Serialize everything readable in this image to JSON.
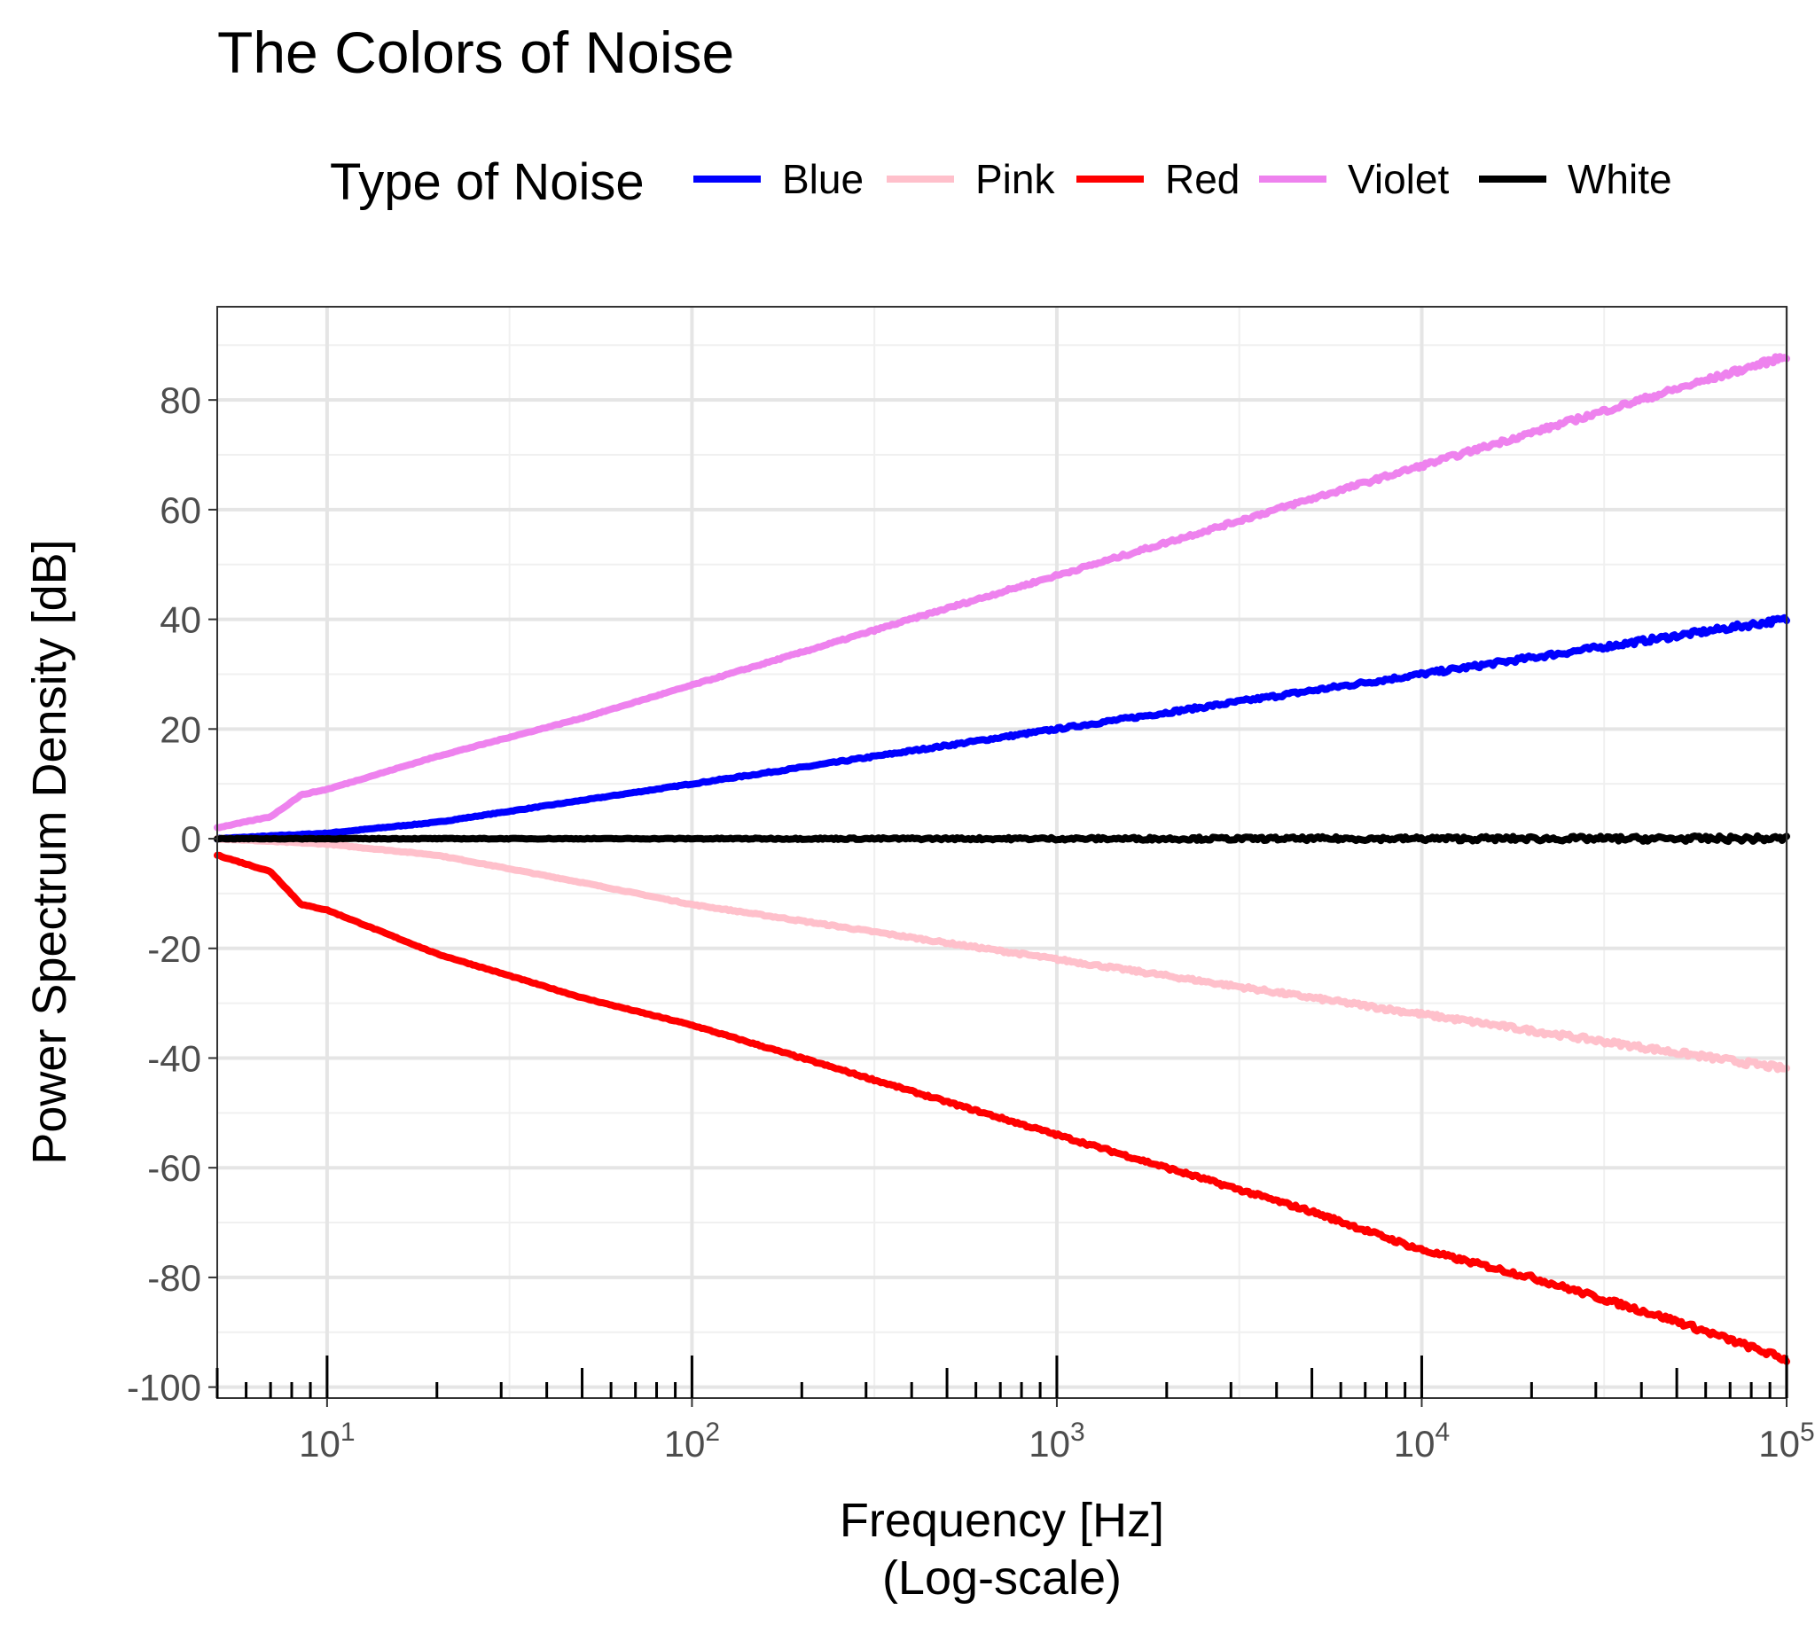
{
  "chart_data": {
    "type": "line",
    "title": "The Colors of Noise",
    "xlabel": "Frequency [Hz]",
    "xlabel_sub": "(Log-scale)",
    "ylabel": "Power Spectrum Density [dB]",
    "x_scale": "log10",
    "xlim": [
      5,
      100000
    ],
    "ylim": [
      -102,
      97
    ],
    "x_ticks": [
      10,
      100,
      1000,
      10000,
      100000
    ],
    "x_tick_labels": [
      {
        "base": "10",
        "exp": "1"
      },
      {
        "base": "10",
        "exp": "2"
      },
      {
        "base": "10",
        "exp": "3"
      },
      {
        "base": "10",
        "exp": "4"
      },
      {
        "base": "10",
        "exp": "5"
      }
    ],
    "y_ticks": [
      80,
      60,
      40,
      20,
      0,
      -20,
      -40,
      -60,
      -80,
      -100
    ],
    "y_tick_labels": [
      "80",
      "60",
      "40",
      "20",
      "0",
      "-20",
      "-40",
      "-60",
      "-80",
      "-100"
    ],
    "grid": true,
    "legend": {
      "title": "Type of Noise",
      "position": "top"
    },
    "series": [
      {
        "name": "Blue",
        "color": "#0000ff",
        "slope_db_per_decade": 10,
        "x": [
          5,
          7,
          10,
          20,
          50,
          100,
          200,
          500,
          1000,
          2000,
          5000,
          10000,
          20000,
          50000,
          100000
        ],
        "y": [
          0,
          0.5,
          1,
          3,
          7,
          10,
          13,
          17,
          20,
          23,
          27,
          30,
          33,
          37,
          40
        ]
      },
      {
        "name": "Pink",
        "color": "#ffc0cb",
        "slope_db_per_decade": -10,
        "x": [
          5,
          7,
          10,
          20,
          50,
          100,
          200,
          500,
          1000,
          2000,
          5000,
          10000,
          20000,
          50000,
          100000
        ],
        "y": [
          0,
          -0.5,
          -1,
          -3,
          -8,
          -12,
          -15,
          -19,
          -22,
          -25,
          -29,
          -32,
          -35,
          -39,
          -42
        ]
      },
      {
        "name": "Red",
        "color": "#ff0000",
        "slope_db_per_decade": -20,
        "x": [
          5,
          7,
          8.5,
          10,
          20,
          50,
          100,
          200,
          500,
          1000,
          2000,
          5000,
          10000,
          20000,
          50000,
          100000
        ],
        "y": [
          -3,
          -6,
          -12,
          -13,
          -21,
          -29,
          -34,
          -40,
          -48,
          -54,
          -60,
          -68,
          -75,
          -80,
          -88,
          -95
        ]
      },
      {
        "name": "Violet",
        "color": "#ee82ee",
        "slope_db_per_decade": 20,
        "x": [
          5,
          7,
          8.5,
          10,
          20,
          50,
          100,
          200,
          500,
          1000,
          2000,
          5000,
          10000,
          20000,
          50000,
          100000
        ],
        "y": [
          2,
          4,
          8,
          9,
          15,
          22,
          28,
          34,
          42,
          48,
          54,
          62,
          68,
          74,
          82,
          88
        ]
      },
      {
        "name": "White",
        "color": "#000000",
        "slope_db_per_decade": 0,
        "x": [
          5,
          10,
          100,
          1000,
          10000,
          100000
        ],
        "y": [
          0,
          0,
          0,
          0,
          0,
          0
        ]
      }
    ]
  }
}
